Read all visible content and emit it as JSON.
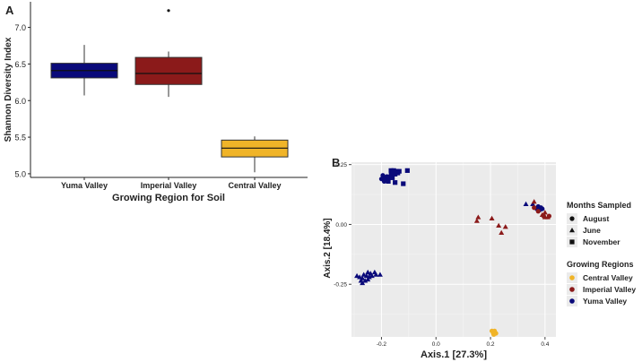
{
  "chart_data": [
    {
      "type": "box",
      "panel_label": "A",
      "title": "",
      "xlabel": "Growing Region for Soil",
      "ylabel": "Shannon Diversity Index",
      "ylim": [
        4.95,
        7.35
      ],
      "yticks": [
        "5.0",
        "5.5",
        "6.0",
        "6.5",
        "7.0"
      ],
      "ytick_values": [
        5.0,
        5.5,
        6.0,
        6.5,
        7.0
      ],
      "categories": [
        "Yuma Valley",
        "Imperial Valley",
        "Central Valley"
      ],
      "boxes": [
        {
          "category": "Yuma Valley",
          "whisker_low": 6.07,
          "q1": 6.31,
          "median": 6.41,
          "q3": 6.51,
          "whisker_high": 6.76,
          "outliers": [],
          "color": "#0a0a7a"
        },
        {
          "category": "Imperial Valley",
          "whisker_low": 6.05,
          "q1": 6.22,
          "median": 6.37,
          "q3": 6.59,
          "whisker_high": 6.67,
          "outliers": [
            7.23
          ],
          "color": "#8b1a1a"
        },
        {
          "category": "Central Valley",
          "whisker_low": 5.02,
          "q1": 5.23,
          "median": 5.35,
          "q3": 5.46,
          "whisker_high": 5.51,
          "outliers": [],
          "color": "#f0b428"
        }
      ]
    },
    {
      "type": "scatter",
      "panel_label": "B",
      "title": "",
      "xlabel": "Axis.1   [27.3%]",
      "ylabel": "Axis.2   [18.4%]",
      "xlim": [
        -0.31,
        0.44
      ],
      "ylim": [
        -0.47,
        0.26
      ],
      "xticks": [
        "-0.2",
        "0.0",
        "0.2",
        "0.4"
      ],
      "xtick_values": [
        -0.2,
        0.0,
        0.2,
        0.4
      ],
      "yticks": [
        "-0.25",
        "0.00",
        "0.25"
      ],
      "ytick_values": [
        -0.25,
        0.0,
        0.25
      ],
      "grid": true,
      "legend": {
        "position": "right",
        "shape_title": "Months Sampled",
        "shape_items": [
          {
            "label": "August",
            "shape": "circle"
          },
          {
            "label": "June",
            "shape": "triangle"
          },
          {
            "label": "November",
            "shape": "square"
          }
        ],
        "color_title": "Growing Regions",
        "color_items": [
          {
            "label": "Central Valley",
            "color": "#f0b428"
          },
          {
            "label": "Imperial Valley",
            "color": "#8b1a1a"
          },
          {
            "label": "Yuma Valley",
            "color": "#0a0a7a"
          }
        ]
      },
      "series": [
        {
          "region": "Yuma Valley",
          "month": "August",
          "points": [
            [
              -0.195,
              0.205
            ],
            [
              -0.19,
              0.195
            ],
            [
              -0.185,
              0.185
            ],
            [
              -0.2,
              0.19
            ],
            [
              -0.18,
              0.2
            ],
            [
              -0.175,
              0.19
            ],
            [
              -0.19,
              0.18
            ],
            [
              -0.165,
              0.21
            ],
            [
              -0.172,
              0.198
            ]
          ]
        },
        {
          "region": "Yuma Valley",
          "month": "November",
          "points": [
            [
              -0.165,
              0.225
            ],
            [
              -0.155,
              0.225
            ],
            [
              -0.145,
              0.222
            ],
            [
              -0.135,
              0.222
            ],
            [
              -0.16,
              0.215
            ],
            [
              -0.15,
              0.21
            ],
            [
              -0.14,
              0.215
            ],
            [
              -0.105,
              0.225
            ],
            [
              -0.12,
              0.17
            ],
            [
              -0.15,
              0.175
            ],
            [
              -0.175,
              0.18
            ],
            [
              -0.16,
              0.195
            ]
          ]
        },
        {
          "region": "Yuma Valley",
          "month": "June",
          "points": [
            [
              -0.29,
              -0.215
            ],
            [
              -0.28,
              -0.22
            ],
            [
              -0.27,
              -0.225
            ],
            [
              -0.265,
              -0.21
            ],
            [
              -0.255,
              -0.215
            ],
            [
              -0.25,
              -0.2
            ],
            [
              -0.245,
              -0.22
            ],
            [
              -0.24,
              -0.205
            ],
            [
              -0.235,
              -0.215
            ],
            [
              -0.225,
              -0.2
            ],
            [
              -0.22,
              -0.21
            ],
            [
              -0.205,
              -0.21
            ],
            [
              -0.275,
              -0.235
            ],
            [
              -0.26,
              -0.235
            ],
            [
              -0.27,
              -0.245
            ],
            [
              -0.25,
              -0.23
            ],
            [
              0.33,
              0.085
            ],
            [
              0.355,
              0.085
            ]
          ]
        },
        {
          "region": "Yuma Valley",
          "month": "August",
          "points": [
            [
              0.375,
              0.075
            ],
            [
              0.385,
              0.07
            ],
            [
              0.37,
              0.065
            ],
            [
              0.38,
              0.06
            ],
            [
              0.39,
              0.065
            ]
          ]
        },
        {
          "region": "Imperial Valley",
          "month": "June",
          "points": [
            [
              0.15,
              0.015
            ],
            [
              0.155,
              0.03
            ],
            [
              0.205,
              0.025
            ],
            [
              0.23,
              -0.005
            ],
            [
              0.255,
              -0.01
            ],
            [
              0.24,
              -0.035
            ],
            [
              0.36,
              0.095
            ],
            [
              0.4,
              0.05
            ],
            [
              0.39,
              0.04
            ],
            [
              0.41,
              0.03
            ],
            [
              0.4,
              0.03
            ]
          ]
        },
        {
          "region": "Imperial Valley",
          "month": "August",
          "points": [
            [
              0.36,
              0.07
            ],
            [
              0.375,
              0.055
            ],
            [
              0.395,
              0.035
            ],
            [
              0.415,
              0.035
            ]
          ]
        },
        {
          "region": "Central Valley",
          "month": "August",
          "points": [
            [
              0.205,
              -0.445
            ],
            [
              0.215,
              -0.445
            ],
            [
              0.21,
              -0.455
            ],
            [
              0.22,
              -0.455
            ],
            [
              0.212,
              -0.46
            ]
          ]
        }
      ]
    }
  ]
}
